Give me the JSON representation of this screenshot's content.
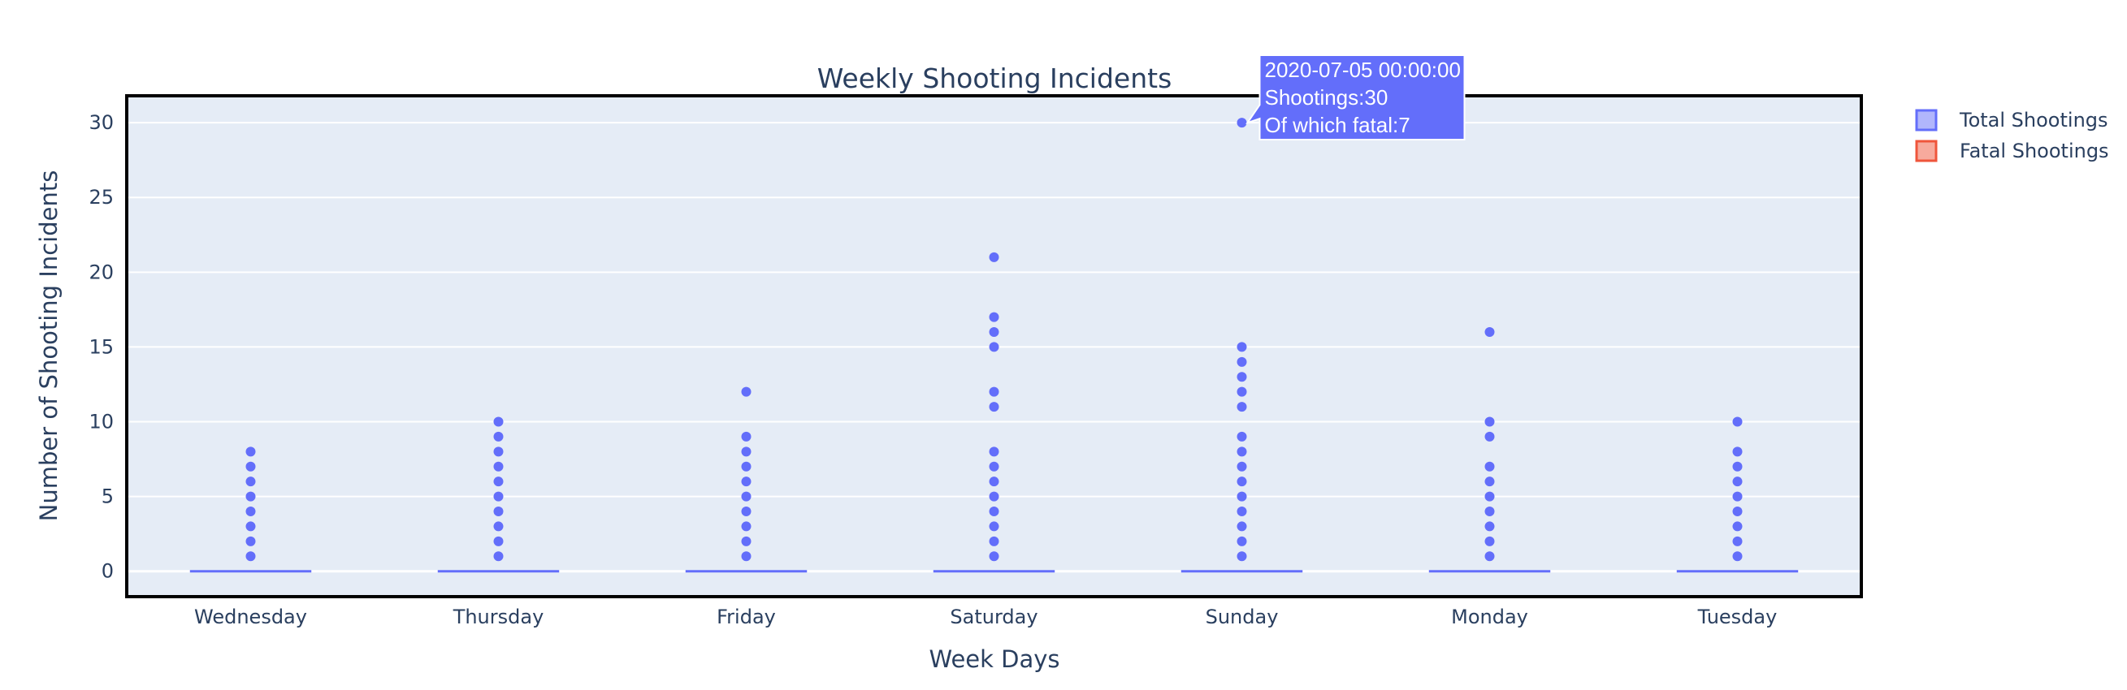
{
  "chart_data": {
    "type": "box",
    "title": "Weekly Shooting Incidents",
    "xlabel": "Week Days",
    "ylabel": "Number of Shooting Incidents",
    "ylim": [
      -1.7,
      31.8
    ],
    "yticks": [
      "0",
      "5",
      "10",
      "15",
      "20",
      "25",
      "30"
    ],
    "categories": [
      "Wednesday",
      "Thursday",
      "Friday",
      "Saturday",
      "Sunday",
      "Monday",
      "Tuesday"
    ],
    "series": [
      {
        "name": "Total Shootings",
        "color": "#636efa",
        "fill": "rgba(99,110,250,0.5)",
        "box_values": [
          0,
          0,
          0,
          0,
          0,
          0,
          0
        ],
        "outliers": [
          [
            1,
            2,
            3,
            4,
            5,
            6,
            7,
            8
          ],
          [
            1,
            2,
            3,
            4,
            5,
            6,
            7,
            8,
            9,
            10
          ],
          [
            1,
            2,
            3,
            4,
            5,
            6,
            7,
            8,
            9,
            12
          ],
          [
            1,
            2,
            3,
            4,
            5,
            6,
            7,
            8,
            11,
            12,
            15,
            16,
            17,
            21
          ],
          [
            1,
            2,
            3,
            4,
            5,
            6,
            7,
            8,
            9,
            11,
            12,
            13,
            14,
            15,
            30
          ],
          [
            1,
            2,
            3,
            4,
            5,
            6,
            7,
            9,
            10,
            16
          ],
          [
            1,
            2,
            3,
            4,
            5,
            6,
            7,
            8,
            10
          ]
        ]
      },
      {
        "name": "Fatal Shootings",
        "color": "#ef553b",
        "fill": "rgba(239,85,59,0.5)"
      }
    ],
    "legend_position": "right",
    "grid": true,
    "plot_bg": "#e5ecf6",
    "tooltip": {
      "category": "Sunday",
      "value": 30,
      "lines": [
        "2020-07-05 00:00:00",
        "Shootings:30",
        "Of which fatal:7"
      ]
    }
  }
}
